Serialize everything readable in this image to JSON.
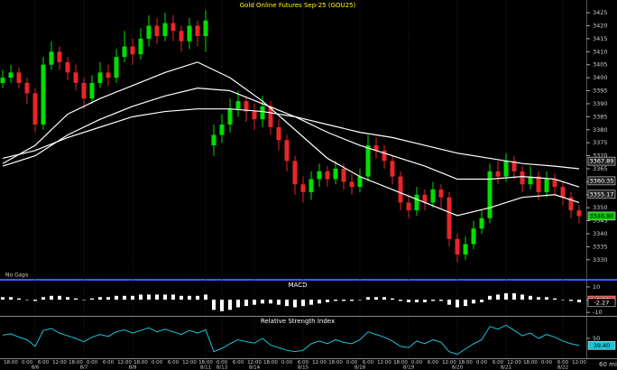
{
  "chart_data": [
    {
      "type": "candlestick",
      "title": "Gold Online Futures Sep-25 (GOU25)",
      "note": "No Gaps",
      "interval": "60 min",
      "categories": [
        null,
        "18:00",
        null,
        "0:00",
        null,
        "6:00",
        null,
        "12:00",
        null,
        "18:00",
        null,
        "0:00",
        null,
        "6:00",
        null,
        "12:00",
        null,
        "18:00",
        null,
        "0:00",
        null,
        "6:00",
        null,
        "12:00",
        null,
        "18:00",
        null,
        "0:00",
        null,
        "6:00",
        null,
        "12:00",
        null,
        "18:00",
        null,
        "0:00",
        null,
        "6:00",
        null,
        "12:00",
        null,
        "18:00",
        null,
        "0:00",
        null,
        "6:00",
        null,
        "12:00",
        null,
        "18:00",
        null,
        "0:00",
        null,
        "6:00",
        null,
        "12:00",
        null,
        "18:00",
        null,
        "0:00",
        null,
        "6:00",
        null,
        "12:00",
        null,
        "18:00",
        null,
        "0:00",
        null,
        "6:00",
        null,
        "12:00"
      ],
      "date_labels": [
        null,
        null,
        null,
        null,
        "8/6",
        null,
        null,
        null,
        null,
        null,
        "8/7",
        null,
        null,
        null,
        null,
        null,
        "8/8",
        null,
        null,
        null,
        null,
        null,
        null,
        null,
        null,
        "8/11",
        null,
        "8/13",
        null,
        null,
        null,
        "8/14",
        null,
        null,
        null,
        null,
        null,
        "8/15",
        null,
        null,
        null,
        null,
        null,
        null,
        "8/18",
        null,
        null,
        null,
        null,
        null,
        "8/19",
        null,
        null,
        null,
        null,
        null,
        "8/20",
        null,
        null,
        null,
        null,
        null,
        "8/21",
        null,
        null,
        null,
        null,
        null,
        null,
        "8/22",
        null,
        null
      ],
      "open": [
        3398,
        3400,
        3402,
        3398,
        3394,
        3382,
        3405,
        3410,
        3406,
        3402,
        3398,
        3392,
        3398,
        3402,
        3400,
        3408,
        3412,
        3409,
        3415,
        3420,
        3416,
        3421,
        3418,
        3414,
        3420,
        3416,
        3374,
        3378,
        3382,
        3388,
        3391,
        3387,
        3384,
        3389,
        3381,
        3376,
        3368,
        3359,
        3356,
        3361,
        3364,
        3361,
        3365,
        3360,
        3358,
        3362,
        3374,
        3372,
        3368,
        3362,
        3352,
        3349,
        3355,
        3352,
        3357,
        3354,
        3338,
        3332,
        3336,
        3342,
        3346,
        3364,
        3362,
        3368,
        3364,
        3359,
        3362,
        3356,
        3361,
        3358,
        3354,
        3349
      ],
      "high": [
        3403,
        3405,
        3404,
        3400,
        3396,
        3408,
        3414,
        3412,
        3408,
        3405,
        3400,
        3401,
        3406,
        3405,
        3411,
        3418,
        3415,
        3419,
        3424,
        3423,
        3425,
        3424,
        3420,
        3423,
        3422,
        3426,
        3382,
        3386,
        3392,
        3395,
        3393,
        3390,
        3393,
        3391,
        3384,
        3378,
        3370,
        3362,
        3364,
        3367,
        3366,
        3368,
        3367,
        3363,
        3365,
        3378,
        3377,
        3374,
        3370,
        3364,
        3355,
        3358,
        3357,
        3360,
        3359,
        3356,
        3340,
        3339,
        3345,
        3349,
        3367,
        3368,
        3371,
        3370,
        3366,
        3366,
        3364,
        3364,
        3363,
        3360,
        3356,
        3351
      ],
      "low": [
        3396,
        3398,
        3396,
        3390,
        3379,
        3380,
        3403,
        3403,
        3399,
        3395,
        3388,
        3390,
        3396,
        3397,
        3398,
        3406,
        3405,
        3407,
        3412,
        3413,
        3414,
        3414,
        3410,
        3411,
        3412,
        3410,
        3370,
        3375,
        3379,
        3385,
        3383,
        3380,
        3381,
        3378,
        3372,
        3364,
        3355,
        3352,
        3353,
        3358,
        3358,
        3359,
        3357,
        3355,
        3356,
        3360,
        3369,
        3365,
        3359,
        3349,
        3346,
        3347,
        3349,
        3350,
        3350,
        3335,
        3329,
        3330,
        3334,
        3340,
        3344,
        3359,
        3360,
        3361,
        3356,
        3357,
        3353,
        3354,
        3355,
        3351,
        3346,
        3344
      ],
      "close": [
        3400,
        3402,
        3398,
        3394,
        3382,
        3405,
        3410,
        3406,
        3402,
        3398,
        3392,
        3398,
        3402,
        3400,
        3408,
        3412,
        3409,
        3415,
        3420,
        3416,
        3421,
        3418,
        3414,
        3420,
        3416,
        3422,
        3378,
        3382,
        3388,
        3391,
        3387,
        3384,
        3389,
        3381,
        3376,
        3368,
        3359,
        3356,
        3361,
        3364,
        3361,
        3365,
        3360,
        3358,
        3362,
        3374,
        3372,
        3368,
        3362,
        3352,
        3349,
        3355,
        3352,
        3357,
        3354,
        3338,
        3332,
        3336,
        3342,
        3346,
        3364,
        3362,
        3368,
        3364,
        3359,
        3362,
        3356,
        3361,
        3358,
        3354,
        3349,
        3346.8
      ],
      "up_color": "#00e000",
      "down_color": "#e8262a",
      "last": {
        "value": 3346.8,
        "label": "3346.80",
        "color": "#00c800"
      },
      "overlays": [
        {
          "color": "#ffffff",
          "x": [
            0,
            4,
            8,
            12,
            16,
            20,
            24,
            28,
            32,
            36,
            40,
            44,
            48,
            52,
            56,
            60,
            64,
            68,
            71
          ],
          "values": [
            3367,
            3374,
            3386,
            3392,
            3397,
            3402,
            3406,
            3400,
            3391,
            3380,
            3369,
            3362,
            3357,
            3352,
            3347,
            3350,
            3354,
            3355,
            3352
          ],
          "last": {
            "value": 3355.17,
            "label": "3355.17"
          }
        },
        {
          "color": "#ffffff",
          "x": [
            0,
            4,
            8,
            12,
            16,
            20,
            24,
            28,
            32,
            36,
            40,
            44,
            48,
            52,
            56,
            60,
            64,
            68,
            71
          ],
          "values": [
            3366,
            3370,
            3378,
            3384,
            3389,
            3393,
            3396,
            3395,
            3390,
            3385,
            3379,
            3374,
            3370,
            3366,
            3361,
            3361,
            3362,
            3361,
            3358
          ],
          "last": {
            "value": 3360.35,
            "label": "3360.35"
          }
        },
        {
          "color": "#ffffff",
          "x": [
            0,
            4,
            8,
            12,
            16,
            20,
            24,
            28,
            32,
            36,
            40,
            44,
            48,
            52,
            56,
            60,
            64,
            68,
            71
          ],
          "values": [
            3369,
            3372,
            3377,
            3381,
            3385,
            3387,
            3388,
            3388,
            3387,
            3385,
            3382,
            3379,
            3377,
            3374,
            3371,
            3369,
            3367,
            3366,
            3365
          ],
          "last": {
            "value": 3367.89,
            "label": "3367.89"
          }
        }
      ],
      "ylim": [
        3323,
        3428.5
      ],
      "yticks": [
        3330,
        3335,
        3340,
        3345,
        3350,
        3355,
        3360,
        3365,
        3370,
        3375,
        3380,
        3385,
        3390,
        3395,
        3400,
        3405,
        3410,
        3415,
        3420,
        3425
      ]
    },
    {
      "type": "bar",
      "title": "MACD",
      "color": "#ffffff",
      "values": [
        2,
        2,
        1,
        0,
        -1,
        2,
        3,
        3,
        2,
        1,
        0,
        1,
        2,
        2,
        3,
        3,
        3,
        4,
        4,
        4,
        4,
        4,
        3,
        3,
        3,
        4,
        -8,
        -9,
        -8,
        -6,
        -5,
        -4,
        -3,
        -3,
        -4,
        -5,
        -6,
        -5,
        -4,
        -3,
        -2,
        -1,
        -1,
        -1,
        0,
        2,
        2,
        2,
        1,
        -1,
        -2,
        -2,
        -2,
        -1,
        -1,
        -4,
        -6,
        -5,
        -3,
        -2,
        3,
        4,
        5,
        5,
        4,
        3,
        2,
        2,
        1,
        0,
        -1,
        -2
      ],
      "ylim": [
        -12,
        13.5
      ],
      "yticks": [
        10,
        0,
        -10
      ],
      "last_labels": [
        {
          "value": -0.38,
          "label": "-0.38",
          "color": "#e8262a"
        },
        {
          "value": -2.27,
          "label": "-2.27",
          "color": "#000000"
        }
      ]
    },
    {
      "type": "line",
      "title": "Relative Strength Index",
      "color": "#19c5d8",
      "values": [
        55,
        57,
        52,
        48,
        38,
        62,
        65,
        58,
        54,
        50,
        45,
        52,
        56,
        53,
        60,
        63,
        58,
        62,
        66,
        60,
        64,
        60,
        56,
        62,
        58,
        63,
        30,
        35,
        42,
        48,
        45,
        43,
        50,
        40,
        36,
        32,
        30,
        32,
        42,
        46,
        42,
        48,
        44,
        42,
        48,
        60,
        56,
        52,
        46,
        38,
        36,
        46,
        42,
        48,
        44,
        30,
        26,
        34,
        42,
        48,
        68,
        64,
        70,
        62,
        54,
        58,
        50,
        56,
        52,
        46,
        42,
        39.4
      ],
      "ylim": [
        20,
        80
      ],
      "yticks": [
        50
      ],
      "last": {
        "value": 39.4,
        "label": "39.40",
        "color": "#19c5d8"
      }
    }
  ]
}
